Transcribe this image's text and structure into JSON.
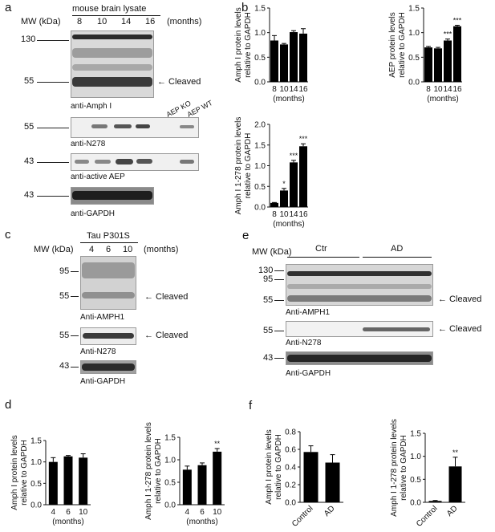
{
  "panel_labels": {
    "a": "a",
    "b": "b",
    "c": "c",
    "d": "d",
    "e": "e",
    "f": "f"
  },
  "panel_a": {
    "mw_label": "MW (kDa)",
    "sample_label": "mouse brain lysate",
    "lanes": [
      "8",
      "10",
      "14",
      "16"
    ],
    "months_label": "(months)",
    "mw_markers": {
      "m130": "130",
      "m55a": "55",
      "m55b": "55",
      "m43a": "43",
      "m43b": "43"
    },
    "cleaved_label": "← Cleaved",
    "blot_labels": {
      "amph": "anti-Amph I",
      "n278": "anti-N278",
      "aep": "anti-active AEP",
      "gapdh": "anti-GAPDH"
    },
    "aep_ko": "AEP KO",
    "aep_wt": "AEP WT"
  },
  "panel_c": {
    "mw_label": "MW (kDa)",
    "sample_label": "Tau P301S",
    "lanes": [
      "4",
      "6",
      "10"
    ],
    "months_label": "(months)",
    "mw_markers": {
      "m95": "95",
      "m55a": "55",
      "m55b": "55",
      "m43": "43"
    },
    "cleaved_label": "← Cleaved",
    "blot_labels": {
      "amph": "Anti-AMPH1",
      "n278": "Anti-N278",
      "gapdh": "Anti-GAPDH"
    }
  },
  "panel_e": {
    "mw_label": "MW (kDa)",
    "groups": [
      "Ctr",
      "AD"
    ],
    "mw_markers": {
      "m130": "130",
      "m95": "95",
      "m55a": "55",
      "m55b": "55",
      "m43": "43"
    },
    "cleaved_label": "← Cleaved",
    "blot_labels": {
      "amph": "Anti-AMPH1",
      "n278": "Anti-N278",
      "gapdh": "Anti-GAPDH"
    }
  },
  "chart_data": [
    {
      "id": "b1",
      "type": "bar",
      "categories": [
        "8",
        "10",
        "14",
        "16"
      ],
      "values": [
        0.84,
        0.76,
        1.01,
        0.98
      ],
      "errors": [
        0.1,
        0.02,
        0.03,
        0.1
      ],
      "sig": [
        "",
        "",
        "",
        ""
      ],
      "ylabel": "Amph I protein levels relative to GAPDH",
      "xlabel": "(months)",
      "ylim": [
        0,
        1.5
      ],
      "yticks": [
        "0.0",
        "0.5",
        "1.0",
        "1.5"
      ]
    },
    {
      "id": "b2",
      "type": "bar",
      "categories": [
        "8",
        "10",
        "14",
        "16"
      ],
      "values": [
        0.7,
        0.68,
        0.84,
        1.13
      ],
      "errors": [
        0.02,
        0.02,
        0.03,
        0.02
      ],
      "sig": [
        "",
        "",
        "***",
        "***"
      ],
      "ylabel": "AEP protein levels relative to GAPDH",
      "xlabel": "(months)",
      "ylim": [
        0,
        1.5
      ],
      "yticks": [
        "0.0",
        "0.5",
        "1.0",
        "1.5"
      ]
    },
    {
      "id": "b3",
      "type": "bar",
      "categories": [
        "8",
        "10",
        "14",
        "16"
      ],
      "values": [
        0.1,
        0.4,
        1.08,
        1.47
      ],
      "errors": [
        0.01,
        0.05,
        0.05,
        0.06
      ],
      "sig": [
        "",
        "*",
        "***",
        "***"
      ],
      "ylabel": "Amph I 1-278 protein levels relative to GAPDH",
      "xlabel": "(months)",
      "ylim": [
        0,
        2.0
      ],
      "yticks": [
        "0.0",
        "0.5",
        "1.0",
        "1.5",
        "2.0"
      ]
    },
    {
      "id": "d1",
      "type": "bar",
      "categories": [
        "4",
        "6",
        "10"
      ],
      "values": [
        1.0,
        1.13,
        1.1
      ],
      "errors": [
        0.1,
        0.02,
        0.09
      ],
      "sig": [
        "",
        "",
        ""
      ],
      "ylabel": "Amph I protein levels relative to GAPDH",
      "xlabel": "(months)",
      "ylim": [
        0,
        1.5
      ],
      "yticks": [
        "0.0",
        "0.5",
        "1.0",
        "1.5"
      ]
    },
    {
      "id": "d2",
      "type": "bar",
      "categories": [
        "4",
        "6",
        "10"
      ],
      "values": [
        0.78,
        0.88,
        1.18
      ],
      "errors": [
        0.08,
        0.05,
        0.07
      ],
      "sig": [
        "",
        "",
        "**"
      ],
      "ylabel": "Amph I 1-278 protein levels relative to GAPDH",
      "xlabel": "(months)",
      "ylim": [
        0,
        1.5
      ],
      "yticks": [
        "0.0",
        "0.5",
        "1.0",
        "1.5"
      ]
    },
    {
      "id": "f1",
      "type": "bar",
      "categories": [
        "Control",
        "AD"
      ],
      "values": [
        0.57,
        0.45
      ],
      "errors": [
        0.07,
        0.09
      ],
      "sig": [
        "",
        ""
      ],
      "ylabel": "Amph I protein levels relative to GAPDH",
      "xlabel": "",
      "ylim": [
        0,
        0.8
      ],
      "yticks": [
        "0.0",
        "0.2",
        "0.4",
        "0.6",
        "0.8"
      ]
    },
    {
      "id": "f2",
      "type": "bar",
      "categories": [
        "Control",
        "AD"
      ],
      "values": [
        0.03,
        0.78
      ],
      "errors": [
        0.01,
        0.2
      ],
      "sig": [
        "",
        "**"
      ],
      "ylabel": "Amph I 1-278 protein levels relative to GAPDH",
      "xlabel": "",
      "ylim": [
        0,
        1.5
      ],
      "yticks": [
        "0.0",
        "0.5",
        "1.0",
        "1.5"
      ]
    }
  ]
}
